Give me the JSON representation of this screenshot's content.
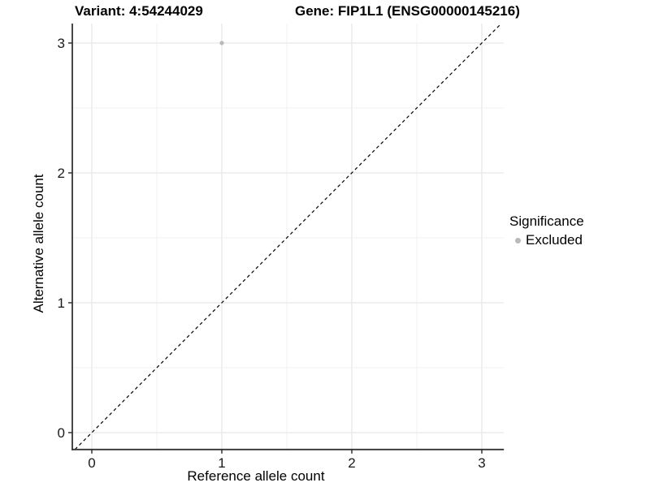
{
  "figure": {
    "title_variant": "Variant: 4:54244029",
    "title_gene": "Gene: FIP1L1 (ENSG00000145216)"
  },
  "legend": {
    "title": "Significance",
    "entries": [
      {
        "label": "Excluded",
        "color": "#b9b9b9"
      }
    ],
    "position": "right"
  },
  "chart_data": {
    "type": "scatter",
    "title": "Variant: 4:54244029   Gene: FIP1L1 (ENSG00000145216)",
    "xlabel": "Reference allele count",
    "ylabel": "Alternative allele count",
    "xlim": [
      -0.15,
      3.17
    ],
    "ylim": [
      -0.13,
      3.15
    ],
    "x_ticks": [
      0,
      1,
      2,
      3
    ],
    "y_ticks": [
      0,
      1,
      2,
      3
    ],
    "grid": "major+minor",
    "minor_grid_step": 0.5,
    "legend_position": "right",
    "series": [
      {
        "name": "Excluded",
        "color": "#b9b9b9",
        "point_radius": 2.6,
        "points": [
          {
            "x": 1,
            "y": 3
          }
        ]
      }
    ],
    "reference_line": {
      "type": "identity",
      "slope": 1,
      "intercept": 0,
      "style": "dashed",
      "color": "#000000"
    }
  },
  "colors": {
    "background": "#ffffff",
    "major_grid": "#e7e7e7",
    "minor_grid": "#f2f2f2",
    "axis_line": "#333333",
    "tick_label": "#1a1a1a",
    "point": "#b9b9b9"
  }
}
